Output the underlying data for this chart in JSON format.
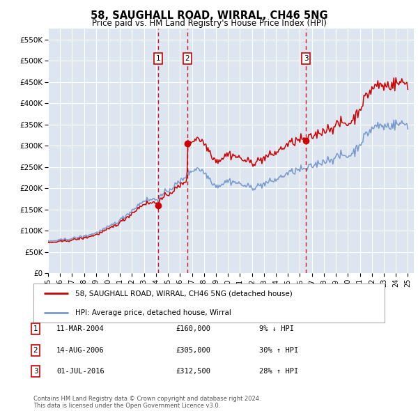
{
  "title": "58, SAUGHALL ROAD, WIRRAL, CH46 5NG",
  "subtitle": "Price paid vs. HM Land Registry's House Price Index (HPI)",
  "ylim": [
    0,
    575000
  ],
  "yticks": [
    0,
    50000,
    100000,
    150000,
    200000,
    250000,
    300000,
    350000,
    400000,
    450000,
    500000,
    550000
  ],
  "ytick_labels": [
    "£0",
    "£50K",
    "£100K",
    "£150K",
    "£200K",
    "£250K",
    "£300K",
    "£350K",
    "£400K",
    "£450K",
    "£500K",
    "£550K"
  ],
  "background_color": "#ffffff",
  "plot_bg_color": "#dde6f0",
  "grid_color": "#ffffff",
  "transactions": [
    {
      "date": 2004.19,
      "price": 160000,
      "label": "1"
    },
    {
      "date": 2006.62,
      "price": 305000,
      "label": "2"
    },
    {
      "date": 2016.5,
      "price": 312500,
      "label": "3"
    }
  ],
  "legend_property": "58, SAUGHALL ROAD, WIRRAL, CH46 5NG (detached house)",
  "legend_hpi": "HPI: Average price, detached house, Wirral",
  "table_rows": [
    {
      "num": "1",
      "date": "11-MAR-2004",
      "price": "£160,000",
      "change": "9% ↓ HPI"
    },
    {
      "num": "2",
      "date": "14-AUG-2006",
      "price": "£305,000",
      "change": "30% ↑ HPI"
    },
    {
      "num": "3",
      "date": "01-JUL-2016",
      "price": "£312,500",
      "change": "28% ↑ HPI"
    }
  ],
  "footnote": "Contains HM Land Registry data © Crown copyright and database right 2024.\nThis data is licensed under the Open Government Licence v3.0.",
  "property_color": "#cc0000",
  "hpi_color": "#7799cc",
  "noise_seed": 42
}
